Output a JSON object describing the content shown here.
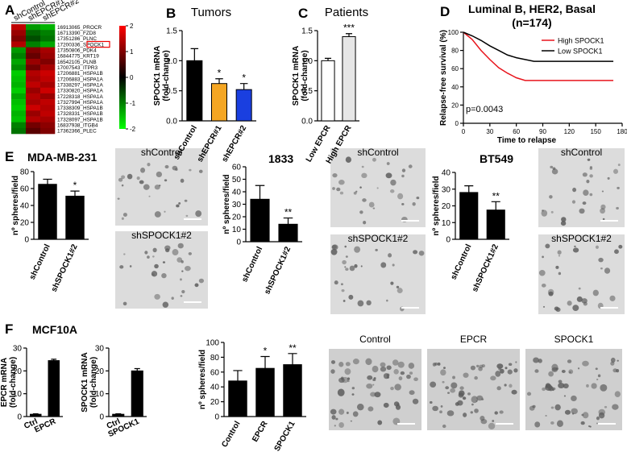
{
  "panel_labels": [
    "A",
    "B",
    "C",
    "D",
    "E",
    "F"
  ],
  "micrograph_labels": [
    "shControl",
    "shSPOCK1#2",
    "shControl",
    "shSPOCK1#2",
    "shControl",
    "shSPOCK1#2",
    "Control",
    "EPCR",
    "SPOCK1"
  ],
  "chart_data": [
    {
      "type": "heatmap",
      "columns": [
        "shControl",
        "shEPCR#1",
        "shEPCR#2"
      ],
      "rows": [
        "16913065_PROCR",
        "16713390_FZD8",
        "17351286_PLNC",
        "17200336_SPOCK1",
        "17350806_PDK4",
        "16844775_KRT19",
        "16542105_PLNB",
        "17007543_ITPR3",
        "17206881_HSPA1B",
        "17206883_HSPA1A",
        "17338297_HSPA1A",
        "17330820_HSPA1A",
        "17228318_HSPA1A",
        "17327994_HSPA1A",
        "17338309_HSPA1B",
        "17328331_HSPA1B",
        "17328097_HSPA1B",
        "16837938_ITGB4",
        "17362366_PLEC"
      ],
      "values": [
        [
          1.5,
          -1.2,
          -1.4
        ],
        [
          1.2,
          -0.8,
          -1.0
        ],
        [
          1.0,
          -0.6,
          -0.9
        ],
        [
          1.4,
          -1.0,
          -1.3
        ],
        [
          -1.2,
          1.0,
          1.3
        ],
        [
          -1.0,
          0.8,
          1.2
        ],
        [
          -1.3,
          1.2,
          1.0
        ],
        [
          -1.1,
          0.9,
          1.3
        ],
        [
          -1.6,
          1.4,
          1.6
        ],
        [
          -1.5,
          1.3,
          1.5
        ],
        [
          -1.4,
          1.5,
          1.3
        ],
        [
          -1.6,
          1.2,
          1.6
        ],
        [
          -1.3,
          1.4,
          1.2
        ],
        [
          -1.5,
          1.3,
          1.5
        ],
        [
          -1.6,
          1.6,
          1.4
        ],
        [
          -1.4,
          1.2,
          1.5
        ],
        [
          -1.5,
          1.4,
          1.3
        ],
        [
          -1.0,
          0.9,
          1.1
        ],
        [
          -0.9,
          0.7,
          1.0
        ]
      ],
      "colorscale": [
        "#00ff00",
        "#000000",
        "#ff0000"
      ],
      "zlim": [
        -2,
        2
      ],
      "zticks": [
        2,
        1,
        0,
        -1,
        -2
      ],
      "highlight_row": 3
    },
    {
      "type": "bar",
      "title": "Tumors",
      "ylabel": [
        "SPOCK1 mRNA",
        "(fold-change)"
      ],
      "categories": [
        "shControl",
        "shEPCR#1",
        "shEPCR#2"
      ],
      "values": [
        1.0,
        0.62,
        0.52
      ],
      "errors": [
        0.2,
        0.08,
        0.1
      ],
      "colors": [
        "#000000",
        "#f5a623",
        "#1a3fe0"
      ],
      "significance": [
        null,
        "*",
        "*"
      ],
      "ylim": [
        0,
        1.5
      ],
      "yticks": [
        {
          "value": 0,
          "label": "0.0"
        },
        0.5,
        {
          "value": 1,
          "label": "1.0"
        },
        1.5
      ]
    },
    {
      "type": "bar",
      "title": "Patients",
      "ylabel": [
        "SPOCK1 mRNA",
        "(fold-change)"
      ],
      "categories": [
        "Low EPCR",
        "High EPCR"
      ],
      "values": [
        1.0,
        1.4
      ],
      "errors": [
        0.04,
        0.05
      ],
      "colors": [
        "#ffffff",
        "#e6e6e6"
      ],
      "significance": [
        null,
        "***"
      ],
      "ylim": [
        0,
        1.5
      ],
      "yticks": [
        {
          "value": 0,
          "label": "0.0"
        },
        0.5,
        {
          "value": 1,
          "label": "1.0"
        },
        1.5
      ]
    },
    {
      "type": "line",
      "title": [
        "Luminal B, HER2, Basal",
        "(n=174)"
      ],
      "xlabel": "Time to relapse",
      "ylabel": "Relapse-free survival (%)",
      "x": [
        0,
        10,
        20,
        30,
        40,
        50,
        60,
        70,
        80,
        90,
        100,
        110,
        120,
        130,
        140,
        150,
        160,
        170
      ],
      "series": [
        {
          "name": "High SPOCK1",
          "color": "#e8141c",
          "values": [
            100,
            92,
            80,
            70,
            61,
            55,
            50,
            47,
            47,
            47,
            47,
            47,
            47,
            47,
            47,
            47,
            47,
            47
          ]
        },
        {
          "name": "Low SPOCK1",
          "color": "#000000",
          "values": [
            100,
            96,
            91,
            85,
            80,
            75,
            72,
            70,
            68,
            68,
            68,
            68,
            68,
            68,
            68,
            68,
            68,
            68
          ]
        }
      ],
      "annotation": "p=0.0043",
      "legend": "top-right",
      "xlim": [
        0,
        180
      ],
      "xticks": [
        0,
        30,
        60,
        90,
        120,
        150,
        180
      ],
      "ylim": [
        0,
        100
      ],
      "yticks": [
        0,
        20,
        40,
        60,
        80,
        100
      ]
    },
    {
      "type": "bar",
      "title": "MDA-MB-231",
      "ylabel": [
        "nº spheres/field"
      ],
      "categories": [
        "shControl",
        "shSPOCK1#2"
      ],
      "values": [
        65,
        51
      ],
      "errors": [
        6,
        6
      ],
      "colors": [
        "#000000",
        "#000000"
      ],
      "significance": [
        null,
        "*"
      ],
      "ylim": [
        0,
        80
      ],
      "yticks": [
        0,
        20,
        40,
        60,
        80
      ]
    },
    {
      "type": "bar",
      "title": "1833",
      "ylabel": [
        "nº spheres/field"
      ],
      "categories": [
        "shControl",
        "shSPOCK1#2"
      ],
      "values": [
        34,
        14
      ],
      "errors": [
        11,
        5
      ],
      "colors": [
        "#000000",
        "#000000"
      ],
      "significance": [
        null,
        "**"
      ],
      "ylim": [
        0,
        60
      ],
      "yticks": [
        0,
        10,
        20,
        30,
        40,
        50,
        60
      ]
    },
    {
      "type": "bar",
      "title": "BT549",
      "ylabel": [
        "nº spheres/field"
      ],
      "categories": [
        "shControl",
        "shSPOCK1#2"
      ],
      "values": [
        28,
        17.5
      ],
      "errors": [
        4,
        5
      ],
      "colors": [
        "#000000",
        "#000000"
      ],
      "significance": [
        null,
        "**"
      ],
      "ylim": [
        0,
        40
      ],
      "yticks": [
        0,
        10,
        20,
        30,
        40
      ]
    },
    {
      "type": "bar",
      "title": "MCF10A",
      "ylabel": [
        "EPCR mRNA",
        "(fold-change)"
      ],
      "categories": [
        "Ctrl",
        "EPCR"
      ],
      "values": [
        1,
        24.5
      ],
      "errors": [
        0.2,
        0.6
      ],
      "colors": [
        "#000000",
        "#000000"
      ],
      "significance": [
        null,
        null
      ],
      "ylim": [
        0,
        30
      ],
      "yticks": [
        0,
        10,
        20,
        30
      ]
    },
    {
      "type": "bar",
      "ylabel": [
        "SPOCK1 mRNA",
        "(fold-change)"
      ],
      "categories": [
        "Ctrl",
        "SPOCK1"
      ],
      "values": [
        1,
        20
      ],
      "errors": [
        0.2,
        1
      ],
      "colors": [
        "#000000",
        "#000000"
      ],
      "significance": [
        null,
        null
      ],
      "ylim": [
        0,
        30
      ],
      "yticks": [
        0,
        10,
        20,
        30
      ]
    },
    {
      "type": "bar",
      "ylabel": [
        "nº spheres/field"
      ],
      "categories": [
        "Control",
        "EPCR",
        "SPOCK1"
      ],
      "values": [
        48,
        65,
        70
      ],
      "errors": [
        14,
        16,
        15
      ],
      "colors": [
        "#000000",
        "#000000",
        "#000000"
      ],
      "significance": [
        null,
        "*",
        "**"
      ],
      "ylim": [
        0,
        100
      ],
      "yticks": [
        0,
        20,
        40,
        60,
        80,
        100
      ]
    }
  ]
}
